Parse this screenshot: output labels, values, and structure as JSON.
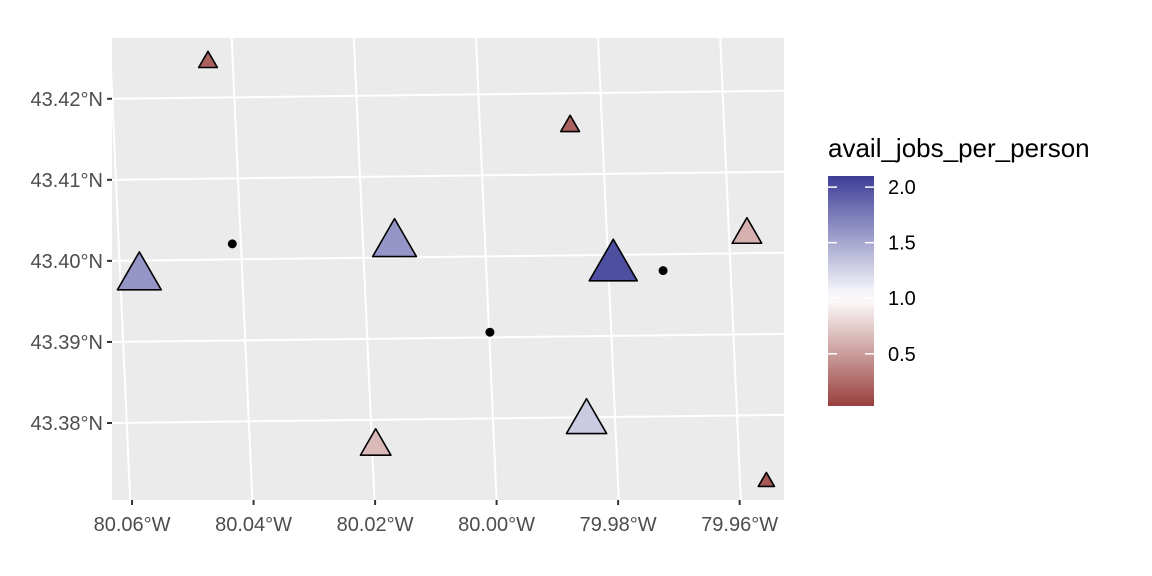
{
  "chart_data": {
    "type": "scatter",
    "title": "",
    "xlabel": "",
    "ylabel": "",
    "xlim": [
      -80.0633,
      -79.9527
    ],
    "ylim": [
      43.3705,
      43.4275
    ],
    "x_ticks": [
      {
        "value": -80.06,
        "label": "80.06°W"
      },
      {
        "value": -80.04,
        "label": "80.04°W"
      },
      {
        "value": -80.02,
        "label": "80.02°W"
      },
      {
        "value": -80.0,
        "label": "80.00°W"
      },
      {
        "value": -79.98,
        "label": "79.98°W"
      },
      {
        "value": -79.96,
        "label": "79.96°W"
      }
    ],
    "y_ticks": [
      {
        "value": 43.38,
        "label": "43.38°N"
      },
      {
        "value": 43.39,
        "label": "43.39°N"
      },
      {
        "value": 43.4,
        "label": "43.40°N"
      },
      {
        "value": 43.41,
        "label": "43.41°N"
      },
      {
        "value": 43.42,
        "label": "43.42°N"
      }
    ],
    "grid": true,
    "graticule": {
      "meridians": [
        {
          "x_bottom": -80.0603,
          "x_top": -80.0637
        },
        {
          "x_bottom": -80.0402,
          "x_top": -80.0436
        },
        {
          "x_bottom": -80.0201,
          "x_top": -80.0235
        },
        {
          "x_bottom": -80.0,
          "x_top": -80.0034
        },
        {
          "x_bottom": -79.9799,
          "x_top": -79.9833
        },
        {
          "x_bottom": -79.9598,
          "x_top": -79.9632
        }
      ],
      "parallels": [
        {
          "y_left": 43.38,
          "y_right": 43.381
        },
        {
          "y_left": 43.39,
          "y_right": 43.391
        },
        {
          "y_left": 43.4,
          "y_right": 43.401
        },
        {
          "y_left": 43.41,
          "y_right": 43.411
        },
        {
          "y_left": 43.42,
          "y_right": 43.421
        }
      ]
    },
    "series": [
      {
        "shape": "triangle",
        "points": [
          {
            "x": -80.0588,
            "y": 43.3984,
            "avail_jobs_per_person": 1.6
          },
          {
            "x": -80.0475,
            "y": 43.4247,
            "avail_jobs_per_person": 0.2
          },
          {
            "x": -80.0168,
            "y": 43.4025,
            "avail_jobs_per_person": 1.6
          },
          {
            "x": -80.0199,
            "y": 43.3774,
            "avail_jobs_per_person": 0.65
          },
          {
            "x": -79.9879,
            "y": 43.4168,
            "avail_jobs_per_person": 0.2
          },
          {
            "x": -79.9808,
            "y": 43.3997,
            "avail_jobs_per_person": 2.0
          },
          {
            "x": -79.9852,
            "y": 43.3805,
            "avail_jobs_per_person": 1.3
          },
          {
            "x": -79.9588,
            "y": 43.4035,
            "avail_jobs_per_person": 0.6
          },
          {
            "x": -79.9556,
            "y": 43.3729,
            "avail_jobs_per_person": 0.15
          }
        ]
      },
      {
        "shape": "dot",
        "points": [
          {
            "x": -80.0435,
            "y": 43.4021
          },
          {
            "x": -80.0011,
            "y": 43.3912
          },
          {
            "x": -79.9726,
            "y": 43.3988
          }
        ]
      }
    ],
    "legend": {
      "title": "avail_jobs_per_person",
      "placement": "right",
      "range": [
        0.03,
        2.1
      ],
      "breaks": [
        {
          "value": 0.5,
          "label": "0.5"
        },
        {
          "value": 1.0,
          "label": "1.0"
        },
        {
          "value": 1.5,
          "label": "1.5"
        },
        {
          "value": 2.0,
          "label": "2.0"
        }
      ],
      "colors": {
        "low": "#98403d",
        "mid": "#ffffff",
        "high": "#3d3d98"
      },
      "midpoint": 1.0
    },
    "colors": {
      "panel_background": "#ebebeb",
      "grid": "#ffffff",
      "dot": "#000000",
      "marker_outline": "#000000"
    }
  }
}
